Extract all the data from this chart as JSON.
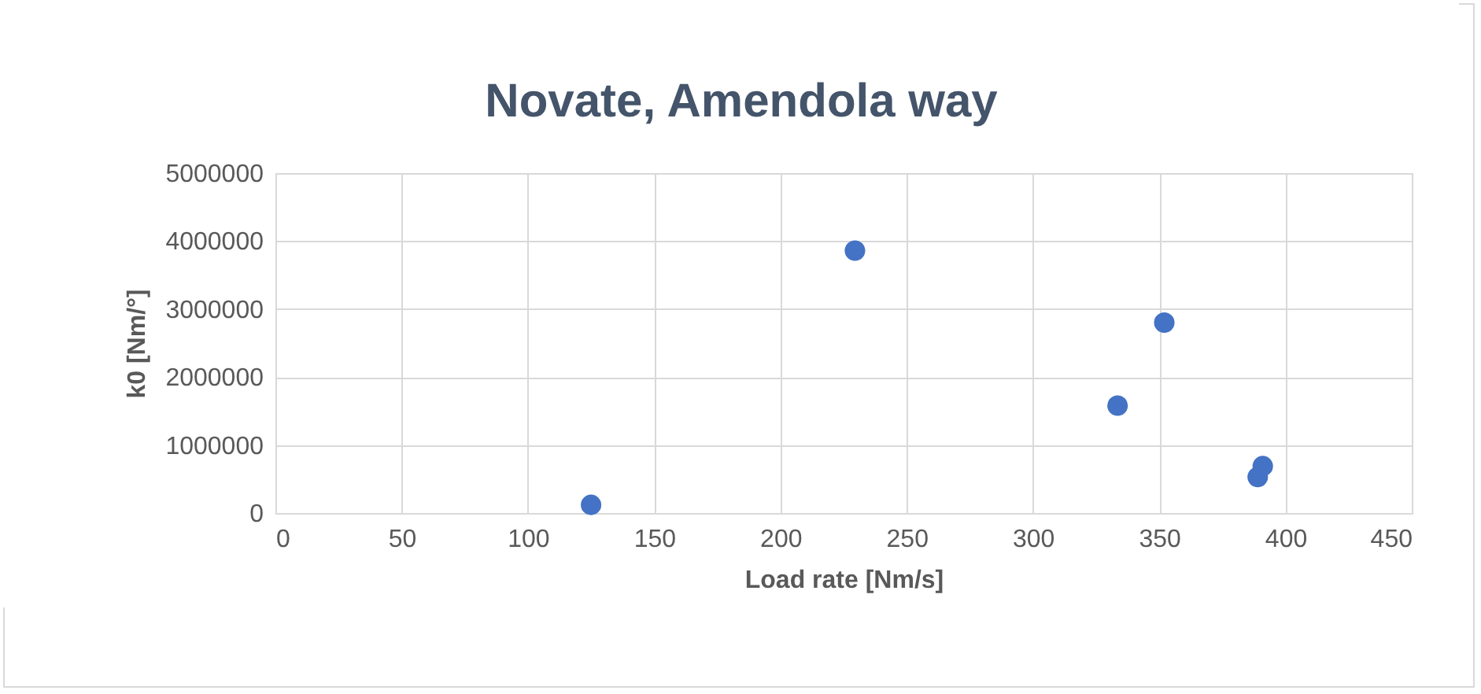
{
  "chart_data": {
    "type": "scatter",
    "title": "Novate, Amendola way",
    "xlabel": "Load rate [Nm/s]",
    "ylabel": "k0 [Nm/°]",
    "x": [
      125,
      229.5,
      333.5,
      352,
      389,
      391
    ],
    "series": [
      {
        "color": "#4472c4",
        "values": [
          120000,
          3860000,
          1580000,
          2800000,
          530000,
          690000
        ]
      }
    ],
    "xlim": [
      0,
      450
    ],
    "xticks": [
      0,
      50,
      100,
      150,
      200,
      250,
      300,
      350,
      400,
      450
    ],
    "ylim": [
      0,
      5000000
    ],
    "yticks": [
      0,
      1000000,
      2000000,
      3000000,
      4000000,
      5000000
    ],
    "grid": true,
    "marker": "circle"
  }
}
